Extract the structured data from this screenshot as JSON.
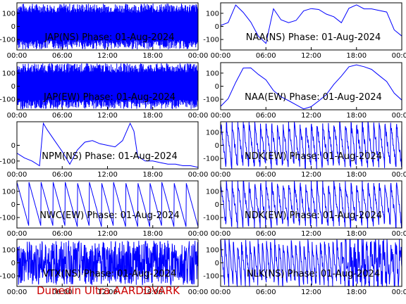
{
  "footer": "Dunedin Ultra AARDDVARK",
  "colors": {
    "trace": "#0000ff",
    "axes": "#000000",
    "footer": "#cc0000"
  },
  "chart_data": [
    {
      "type": "line",
      "title": "JAP(NS) Phase: 01-Aug-2024",
      "xticks": [
        "00:00",
        "06:00",
        "12:00",
        "18:00",
        "00:00"
      ],
      "yticks": [
        "100",
        "0",
        "-100"
      ],
      "xlim": [
        0,
        24
      ],
      "ylim": [
        -180,
        180
      ],
      "trace": "wrapped-dense",
      "x": [
        0,
        1.2,
        2.0,
        2.6,
        24
      ],
      "y": [
        -40,
        -100,
        -30,
        -120,
        -90
      ]
    },
    {
      "type": "line",
      "title": "NAA(NS) Phase: 01-Aug-2024",
      "xticks": [
        "00:00",
        "06:00",
        "12:00",
        "18:00",
        "00:00"
      ],
      "yticks": [
        "100",
        "0",
        "-100"
      ],
      "xlim": [
        0,
        24
      ],
      "ylim": [
        -180,
        180
      ],
      "trace": "sawtooth",
      "x": [
        0,
        1,
        2,
        3,
        4,
        5,
        6,
        7,
        8,
        9,
        10,
        11,
        12,
        13,
        14,
        15,
        16,
        17,
        18,
        19,
        20,
        21,
        22,
        23,
        24
      ],
      "y": [
        10,
        30,
        150,
        100,
        20,
        -60,
        -140,
        120,
        60,
        40,
        60,
        110,
        150,
        130,
        100,
        60,
        20,
        150,
        170,
        140,
        130,
        120,
        110,
        -20,
        -60
      ]
    },
    {
      "type": "line",
      "title": "JAP(EW) Phase: 01-Aug-2024",
      "xticks": [
        "00:00",
        "06:00",
        "12:00",
        "18:00",
        "00:00"
      ],
      "yticks": [
        "100",
        "0",
        "-100"
      ],
      "xlim": [
        0,
        24
      ],
      "ylim": [
        -180,
        180
      ],
      "trace": "wrapped-dense",
      "x": [
        0,
        24
      ],
      "y": [
        0,
        0
      ]
    },
    {
      "type": "line",
      "title": "NAA(EW) Phase: 01-Aug-2024",
      "xticks": [
        "00:00",
        "06:00",
        "12:00",
        "18:00",
        "00:00"
      ],
      "yticks": [
        "100",
        "0",
        "-100"
      ],
      "xlim": [
        0,
        24
      ],
      "ylim": [
        -180,
        180
      ],
      "trace": "bowl",
      "x": [
        0,
        1,
        2,
        3,
        4,
        5,
        6,
        7,
        8,
        9,
        10,
        11,
        12,
        13,
        14,
        15,
        16,
        17,
        18,
        19,
        20,
        21,
        22,
        23,
        24
      ],
      "y": [
        -150,
        -100,
        20,
        130,
        150,
        100,
        40,
        -20,
        -80,
        -120,
        -150,
        -160,
        -150,
        -120,
        -60,
        10,
        80,
        140,
        170,
        160,
        120,
        80,
        40,
        -60,
        -120
      ]
    },
    {
      "type": "line",
      "title": "NPM(NS) Phase: 01-Aug-2024",
      "xticks": [
        "00:00",
        "06:00",
        "12:00",
        "18:00",
        "00:00"
      ],
      "yticks": [
        "0",
        "-100"
      ],
      "xlim": [
        0,
        24
      ],
      "ylim": [
        -150,
        150
      ],
      "trace": "sparse",
      "x": [
        0,
        1,
        2,
        3,
        3.5,
        4,
        5,
        6,
        7,
        8,
        9,
        10,
        11,
        12,
        13,
        14,
        15,
        15.5,
        16,
        17,
        18,
        19,
        20,
        21,
        22,
        23,
        24
      ],
      "y": [
        -50,
        -80,
        -100,
        -130,
        140,
        100,
        30,
        -40,
        -120,
        -30,
        20,
        30,
        10,
        0,
        -10,
        30,
        140,
        90,
        -70,
        -100,
        -100,
        -110,
        -120,
        -120,
        -130,
        -130,
        -140
      ]
    },
    {
      "type": "line",
      "title": "NDK(EW) Phase: 01-Aug-2024",
      "xticks": [
        "00:00",
        "06:00",
        "12:00",
        "18:00",
        "00:00"
      ],
      "yticks": [
        "100",
        "0",
        "-100"
      ],
      "xlim": [
        0,
        24
      ],
      "ylim": [
        -180,
        180
      ],
      "trace": "sawtooth-fast",
      "x": [
        0,
        24
      ],
      "y": [
        150,
        -150
      ]
    },
    {
      "type": "line",
      "title": "NWC(EW) Phase: 01-Aug-2024",
      "xticks": [
        "00:00",
        "06:00",
        "12:00",
        "18:00",
        "00:00"
      ],
      "yticks": [
        "100",
        "0",
        "-100"
      ],
      "xlim": [
        0,
        24
      ],
      "ylim": [
        -180,
        180
      ],
      "trace": "sawtooth-slow",
      "x": [
        0,
        24
      ],
      "y": [
        170,
        -160
      ]
    },
    {
      "type": "line",
      "title": "NDK(EW) Phase: 01-Aug-2024",
      "xticks": [
        "00:00",
        "06:00",
        "12:00",
        "18:00",
        "00:00"
      ],
      "yticks": [
        "100",
        "0",
        "-100"
      ],
      "xlim": [
        0,
        24
      ],
      "ylim": [
        -180,
        180
      ],
      "trace": "sawtooth-fast",
      "x": [
        0,
        24
      ],
      "y": [
        150,
        -150
      ]
    },
    {
      "type": "line",
      "title": "VTX(NS) Phase: 01-Aug-2024",
      "xticks": [
        "00:00",
        "06:00",
        "12:00",
        "18:00",
        "00:00"
      ],
      "yticks": [
        "100",
        "0",
        "-100"
      ],
      "xlim": [
        0,
        24
      ],
      "ylim": [
        -180,
        180
      ],
      "trace": "noisy",
      "x": [
        0,
        24
      ],
      "y": [
        0,
        0
      ]
    },
    {
      "type": "line",
      "title": "NLK(NS) Phase: 01-Aug-2024",
      "xticks": [
        "00:00",
        "06:00",
        "12:00",
        "18:00",
        "00:00"
      ],
      "yticks": [
        "100",
        "0",
        "-100"
      ],
      "xlim": [
        0,
        24
      ],
      "ylim": [
        -180,
        180
      ],
      "trace": "sawtooth-noisy",
      "x": [
        0,
        24
      ],
      "y": [
        160,
        -160
      ]
    }
  ]
}
